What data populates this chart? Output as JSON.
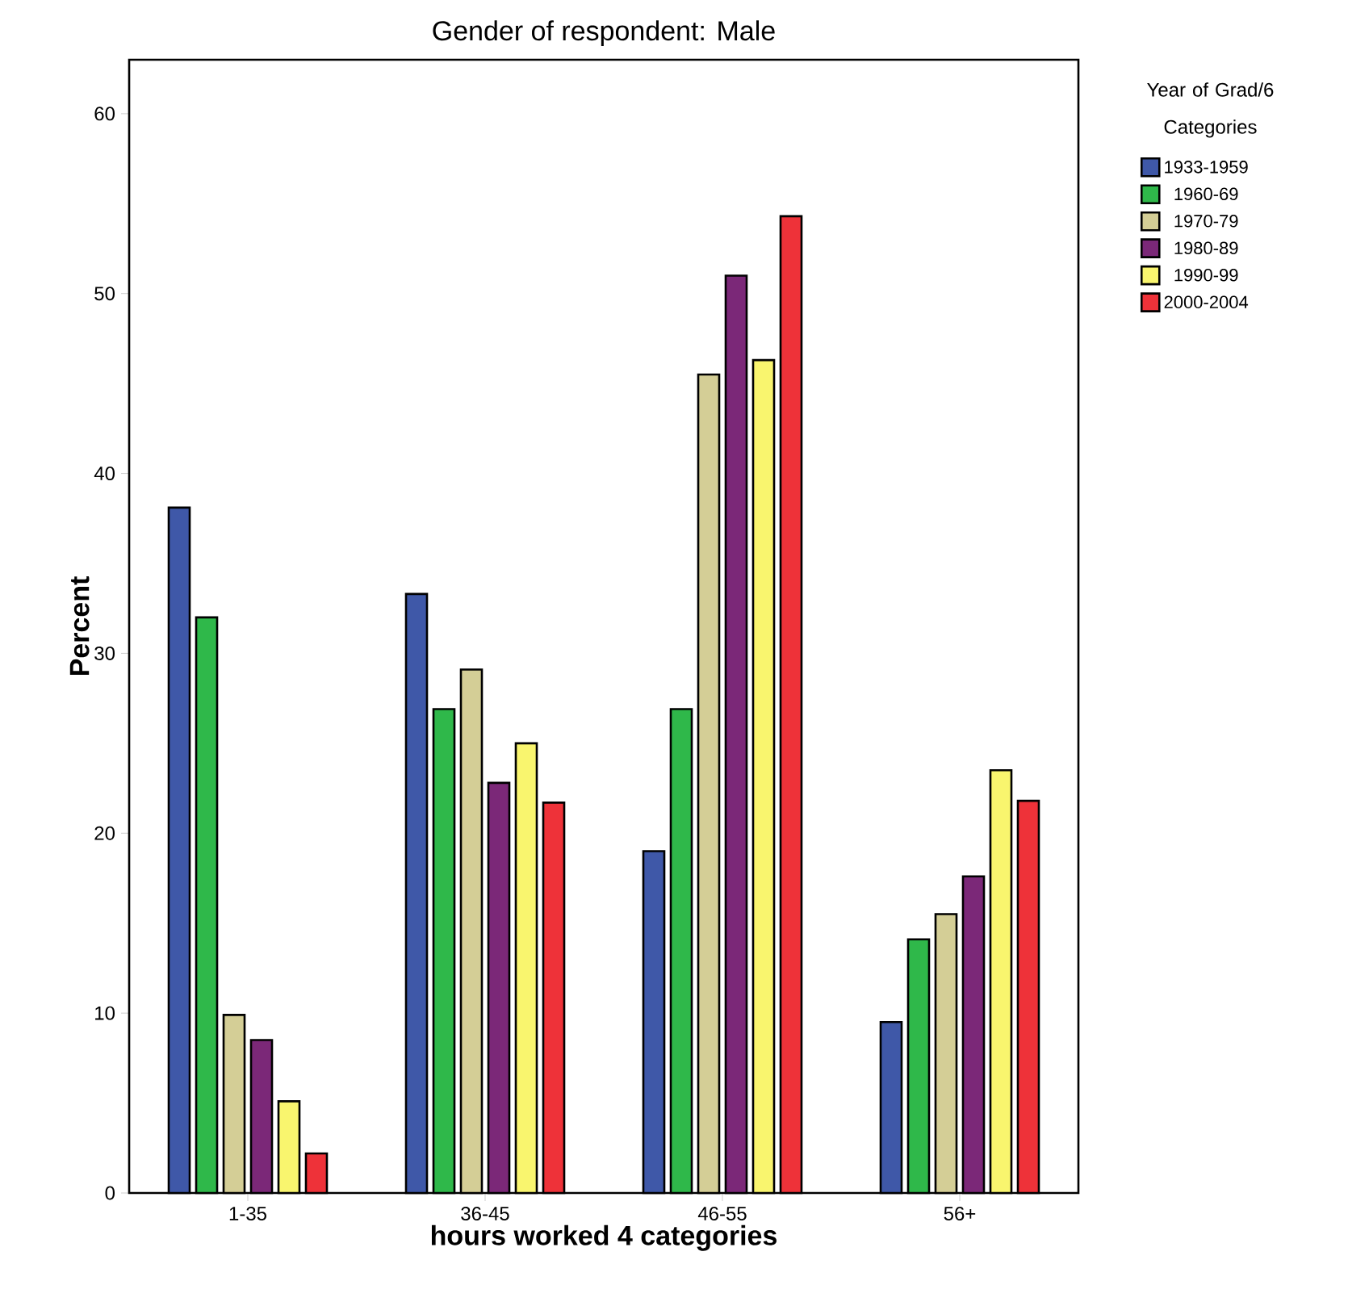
{
  "chart_data": {
    "type": "bar",
    "title": "Gender of respondent: Male",
    "xlabel": "hours worked 4 categories",
    "ylabel": "Percent",
    "legend_title": "Year of Grad/6 Categories",
    "legend": "right",
    "categories": [
      "1-35",
      "36-45",
      "46-55",
      "56+"
    ],
    "ylim": [
      0,
      63
    ],
    "yticks": [
      0,
      10,
      20,
      30,
      40,
      50,
      60
    ],
    "series": [
      {
        "name": "1933-1959",
        "color": "#3f58a8",
        "values": [
          38.1,
          33.3,
          19.0,
          9.5
        ]
      },
      {
        "name": "1960-69",
        "color": "#2fb84a",
        "values": [
          32.0,
          26.9,
          26.9,
          14.1
        ]
      },
      {
        "name": "1970-79",
        "color": "#d4ce96",
        "values": [
          9.9,
          29.1,
          45.5,
          15.5
        ]
      },
      {
        "name": "1980-89",
        "color": "#7b2878",
        "values": [
          8.5,
          22.8,
          51.0,
          17.6
        ]
      },
      {
        "name": "1990-99",
        "color": "#f9f56e",
        "values": [
          5.1,
          25.0,
          46.3,
          23.5
        ]
      },
      {
        "name": "2000-2004",
        "color": "#ee3239",
        "values": [
          2.2,
          21.7,
          54.3,
          21.8
        ]
      }
    ]
  }
}
